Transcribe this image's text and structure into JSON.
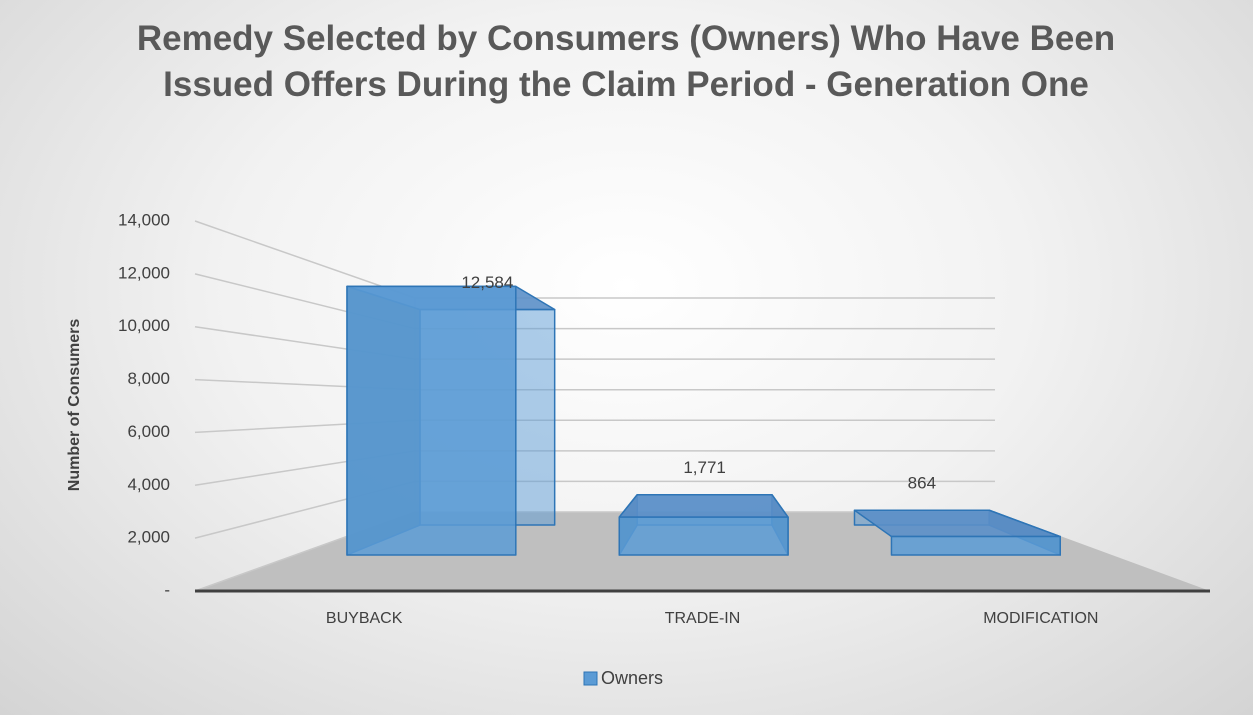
{
  "chart_data": {
    "type": "bar3d",
    "title": "Remedy Selected by Consumers (Owners) Who Have Been Issued Offers During the Claim Period - Generation One",
    "y_label": "Number of Consumers",
    "categories": [
      "BUYBACK",
      "TRADE-IN",
      "MODIFICATION"
    ],
    "series": [
      {
        "name": "Owners",
        "color": "#5b9bd5",
        "values": [
          12584,
          1771,
          864
        ],
        "value_labels": [
          "12,584",
          "1,771",
          "864"
        ]
      }
    ],
    "ylim": [
      0,
      14000
    ],
    "yticks": [
      {
        "value": 0,
        "label": "-"
      },
      {
        "value": 2000,
        "label": "2,000"
      },
      {
        "value": 4000,
        "label": "4,000"
      },
      {
        "value": 6000,
        "label": "6,000"
      },
      {
        "value": 8000,
        "label": "8,000"
      },
      {
        "value": 10000,
        "label": "10,000"
      },
      {
        "value": 12000,
        "label": "12,000"
      },
      {
        "value": 14000,
        "label": "14,000"
      }
    ],
    "grid": true,
    "legend": "bottom"
  }
}
